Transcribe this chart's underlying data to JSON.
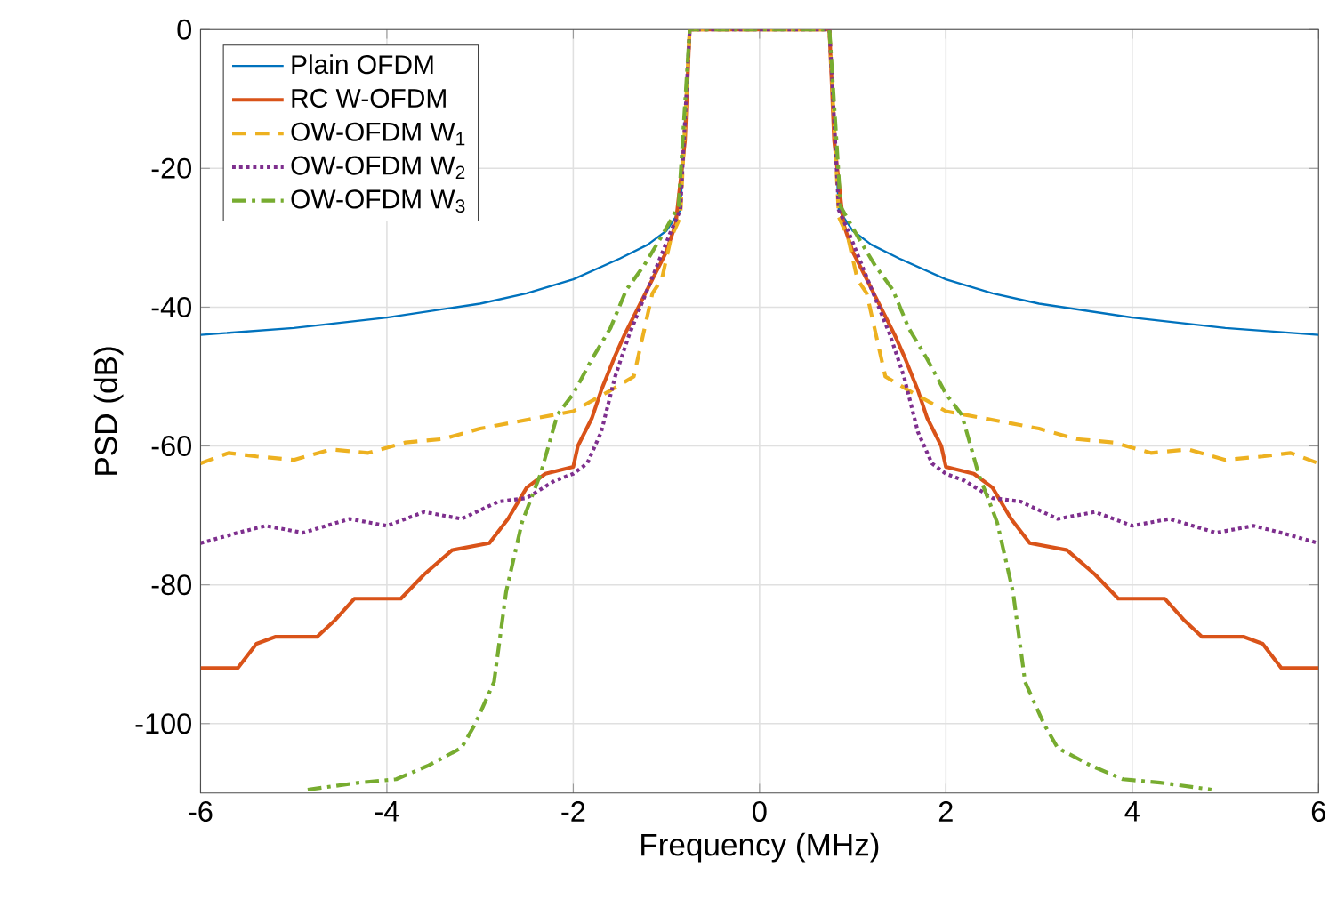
{
  "chart_data": {
    "type": "line",
    "xlabel": "Frequency (MHz)",
    "ylabel": "PSD (dB)",
    "xlim": [
      -6,
      6
    ],
    "ylim": [
      -110,
      0
    ],
    "xticks": [
      -6,
      -4,
      -2,
      0,
      2,
      4,
      6
    ],
    "yticks": [
      -100,
      -80,
      -60,
      -40,
      -20,
      0
    ],
    "grid": true,
    "legend": "top left",
    "marker": "none",
    "series": [
      {
        "name": "Plain OFDM",
        "color": "#0072bd",
        "line_style": "solid",
        "x": [
          -6,
          -5,
          -4,
          -3,
          -2.5,
          -2,
          -1.5,
          -1.2,
          -1,
          -0.85,
          -0.75,
          0.75,
          0.85,
          1,
          1.2,
          1.5,
          2,
          2.5,
          3,
          4,
          5,
          6
        ],
        "values": [
          -44,
          -43,
          -41.5,
          -39.5,
          -38,
          -36,
          -33,
          -31,
          -29,
          -26,
          0,
          0,
          -26,
          -29,
          -31,
          -33,
          -36,
          -38,
          -39.5,
          -41.5,
          -43,
          -44
        ]
      },
      {
        "name": "RC W-OFDM",
        "color": "#d95319",
        "line_style": "solid",
        "x": [
          -6,
          -5.6,
          -5.4,
          -5.2,
          -4.75,
          -4.55,
          -4.35,
          -3.85,
          -3.6,
          -3.3,
          -2.9,
          -2.7,
          -2.5,
          -2.3,
          -2,
          -1.95,
          -1.8,
          -1.7,
          -1.55,
          -1.45,
          -1.3,
          -1.15,
          -1,
          -0.9,
          -0.8,
          -0.75,
          0.75,
          0.8,
          0.9,
          1,
          1.15,
          1.3,
          1.45,
          1.55,
          1.7,
          1.8,
          1.95,
          2,
          2.3,
          2.5,
          2.7,
          2.9,
          3.3,
          3.6,
          3.85,
          4.35,
          4.55,
          4.75,
          5.2,
          5.4,
          5.6,
          6
        ],
        "values": [
          -92,
          -92,
          -88.5,
          -87.5,
          -87.5,
          -85,
          -82,
          -82,
          -78.5,
          -75,
          -74,
          -70.5,
          -66,
          -64,
          -63,
          -60,
          -56,
          -52,
          -47,
          -44,
          -40,
          -36,
          -32,
          -28,
          -16,
          0,
          0,
          -16,
          -28,
          -32,
          -36,
          -40,
          -44,
          -47,
          -52,
          -56,
          -60,
          -63,
          -64,
          -66,
          -70.5,
          -74,
          -75,
          -78.5,
          -82,
          -82,
          -85,
          -87.5,
          -87.5,
          -88.5,
          -92,
          -92
        ]
      },
      {
        "name": "OW-OFDM W$_{1}$",
        "color": "#edb120",
        "line_style": "dashed",
        "x": [
          -6,
          -5.7,
          -5.4,
          -5,
          -4.6,
          -4.2,
          -3.8,
          -3.4,
          -3,
          -2.6,
          -2.2,
          -2,
          -1.6,
          -1.35,
          -1.25,
          -1.15,
          -1.05,
          -0.95,
          -0.85,
          -0.75,
          0.75,
          0.85,
          0.95,
          1.05,
          1.15,
          1.25,
          1.35,
          1.6,
          2,
          2.2,
          2.6,
          3,
          3.4,
          3.8,
          4.2,
          4.6,
          5,
          5.4,
          5.7,
          6
        ],
        "values": [
          -62.5,
          -61,
          -61.5,
          -62,
          -60.5,
          -61,
          -59.5,
          -59,
          -57.5,
          -56.5,
          -55.5,
          -55,
          -52,
          -50,
          -44,
          -38,
          -36,
          -30,
          -27,
          0,
          0,
          -27,
          -30,
          -36,
          -38,
          -44,
          -50,
          -52,
          -55,
          -55.5,
          -56.5,
          -57.5,
          -59,
          -59.5,
          -61,
          -60.5,
          -62,
          -61.5,
          -61,
          -62.5
        ]
      },
      {
        "name": "OW-OFDM W$_{2}$",
        "color": "#7e2f8e",
        "line_style": "dotted",
        "x": [
          -6,
          -5.6,
          -5.3,
          -4.9,
          -4.4,
          -4,
          -3.6,
          -3.2,
          -2.8,
          -2.5,
          -2.2,
          -2,
          -1.85,
          -1.7,
          -1.55,
          -1.4,
          -1.25,
          -1.1,
          -0.95,
          -0.85,
          -0.75,
          0.75,
          0.85,
          0.95,
          1.1,
          1.25,
          1.4,
          1.55,
          1.7,
          1.85,
          2,
          2.2,
          2.5,
          2.8,
          3.2,
          3.6,
          4,
          4.4,
          4.9,
          5.3,
          5.6,
          6
        ],
        "values": [
          -74,
          -72.5,
          -71.5,
          -72.5,
          -70.5,
          -71.5,
          -69.5,
          -70.5,
          -68,
          -67.5,
          -65,
          -64,
          -62.5,
          -58,
          -50,
          -44,
          -39,
          -34,
          -29,
          -26,
          0,
          0,
          -26,
          -29,
          -34,
          -39,
          -44,
          -50,
          -58,
          -62.5,
          -64,
          -65,
          -67.5,
          -68,
          -70.5,
          -69.5,
          -71.5,
          -70.5,
          -72.5,
          -71.5,
          -72.5,
          -74
        ]
      },
      {
        "name": "OW-OFDM W$_{3}$",
        "color": "#77ac30",
        "line_style": "dashdot",
        "x": [
          -4.85,
          -4.3,
          -3.9,
          -3.55,
          -3.2,
          -3.05,
          -2.85,
          -2.72,
          -2.55,
          -2.35,
          -2.17,
          -2,
          -1.8,
          -1.6,
          -1.43,
          -1.24,
          -1.06,
          -0.87,
          -0.75,
          0.75,
          0.87,
          1.06,
          1.24,
          1.43,
          1.6,
          1.8,
          2,
          2.17,
          2.35,
          2.55,
          2.72,
          2.85,
          3.05,
          3.2,
          3.55,
          3.9,
          4.3,
          4.85
        ],
        "values": [
          -109.5,
          -108.5,
          -108,
          -106,
          -103.5,
          -100,
          -94,
          -81,
          -71,
          -64,
          -55.5,
          -52.5,
          -47.5,
          -43,
          -37.5,
          -34,
          -30,
          -25.5,
          0,
          0,
          -25.5,
          -30,
          -34,
          -37.5,
          -43,
          -47.5,
          -52.5,
          -55.5,
          -64,
          -71,
          -81,
          -94,
          -100,
          -103.5,
          -106,
          -108,
          -108.5,
          -109.5
        ]
      }
    ]
  }
}
